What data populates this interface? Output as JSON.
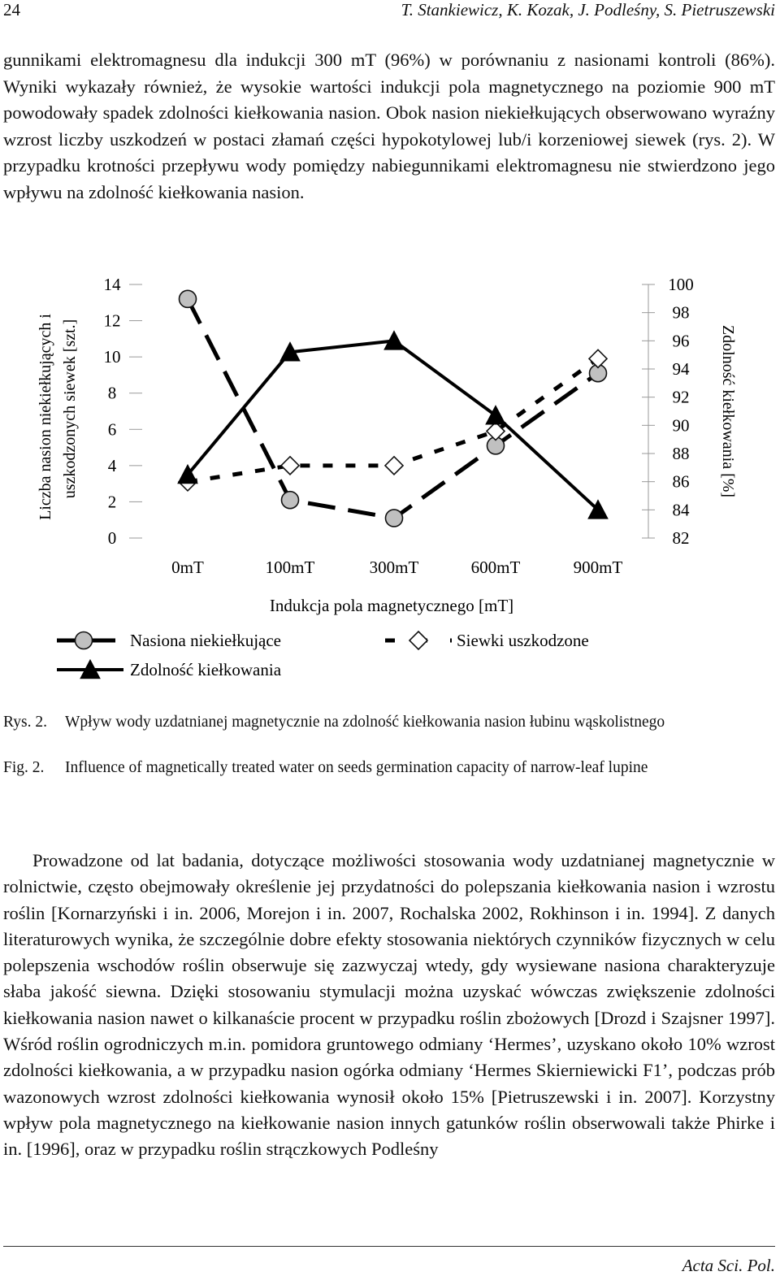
{
  "header": {
    "page_number": "24",
    "authors": "T. Stankiewicz, K. Kozak, J. Podleśny, S. Pietruszewski"
  },
  "paragraph1": "gunnikami elektromagnesu dla indukcji 300 mT (96%) w porównaniu z nasionami kontroli (86%). Wyniki wykazały również, że wysokie wartości indukcji pola magnetycznego na poziomie 900 mT powodowały spadek zdolności kiełkowania nasion. Obok nasion niekiełkujących obserwowano wyraźny wzrost liczby uszkodzeń w postaci złamań części hypokotylowej lub/i korzeniowej siewek (rys. 2). W przypadku krotności przepływu wody pomiędzy nabiegunnikami elektromagnesu nie stwierdzono jego wpływu na zdolność kiełkowania nasion.",
  "chart_data": {
    "type": "line",
    "categories": [
      "0mT",
      "100mT",
      "300mT",
      "600mT",
      "900mT"
    ],
    "xlabel": "Indukcja pola magnetycznego [mT]",
    "ylabel_left_line1": "Liczba nasion niekiełkujących i",
    "ylabel_left_line2": "uszkodzonych siewek [szt.]",
    "ylabel_right": "Zdolność kiełkowania [%]",
    "ylim_left": [
      0,
      14
    ],
    "yticks_left": [
      "0",
      "2",
      "4",
      "6",
      "8",
      "10",
      "12",
      "14"
    ],
    "ylim_right": [
      82,
      100
    ],
    "yticks_right": [
      "82",
      "84",
      "86",
      "88",
      "90",
      "92",
      "94",
      "96",
      "98",
      "100"
    ],
    "series": [
      {
        "name": "Nasiona niekiełkujące",
        "axis": "left",
        "values": [
          13.2,
          2.1,
          1.1,
          5.1,
          9.1
        ],
        "color": "#000000",
        "marker": "circle",
        "dash": "long-dash"
      },
      {
        "name": "Siewki uszkodzone",
        "axis": "left",
        "values": [
          3.1,
          4.0,
          4.0,
          5.9,
          9.9
        ],
        "color": "#000000",
        "marker": "diamond",
        "dash": "short-dash"
      },
      {
        "name": "Zdolność kiełkowania",
        "axis": "right",
        "values": [
          86.5,
          95.2,
          96.0,
          90.7,
          84.0
        ],
        "color": "#000000",
        "marker": "triangle",
        "dash": "solid"
      }
    ],
    "legend": "bottom"
  },
  "caption_pl": {
    "label": "Rys. 2.",
    "text": "Wpływ wody uzdatnianej magnetycznie na zdolność kiełkowania nasion łubinu wąskolistnego"
  },
  "caption_en": {
    "label": "Fig. 2.",
    "text": "Influence of magnetically treated water on seeds germination capacity of narrow-leaf lupine"
  },
  "paragraph2": "Prowadzone od lat badania, dotyczące możliwości stosowania wody uzdatnianej magnetycznie w rolnictwie, często obejmowały określenie jej przydatności do polepszania kiełkowania nasion i wzrostu roślin [Kornarzyński i in. 2006, Morejon i in. 2007, Rochalska 2002, Rokhinson i in. 1994]. Z danych literaturowych wynika, że szczególnie dobre efekty stosowania niektórych czynników fizycznych w celu polepszenia wschodów roślin obserwuje się zazwyczaj wtedy, gdy wysiewane nasiona charakteryzuje słaba jakość siewna. Dzięki stosowaniu stymulacji można uzyskać wówczas zwiększenie zdolności kiełkowania nasion nawet o kilkanaście procent w przypadku roślin zbożowych [Drozd i Szajsner 1997]. Wśród roślin ogrodniczych m.in. pomidora gruntowego odmiany ‘Hermes’, uzyskano około 10% wzrost zdolności kiełkowania, a w przypadku nasion ogórka odmiany ‘Hermes Skierniewicki F1’, podczas prób wazonowych wzrost zdolności kiełkowania wynosił około 15% [Pietruszewski i in. 2007]. Korzystny wpływ pola magnetycznego na kiełkowanie nasion innych gatunków roślin obserwowali także Phirke i in. [1996], oraz w przypadku roślin strączkowych Podleśny",
  "footer": "Acta Sci. Pol."
}
